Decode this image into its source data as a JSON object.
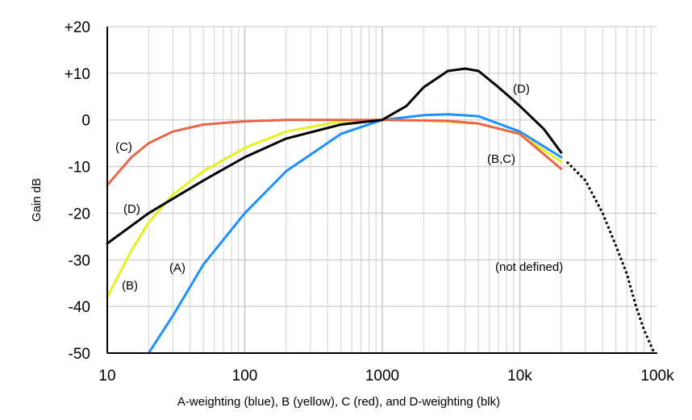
{
  "chart_data": {
    "type": "line",
    "caption": "A-weighting (blue), B (yellow), C (red), and D-weighting (blk)",
    "ylabel": "Gain dB",
    "xscale": "log",
    "xlim": [
      10,
      100000
    ],
    "ylim": [
      -50,
      20
    ],
    "grid": true,
    "x_tick_labels": [
      "10",
      "100",
      "1000",
      "10k",
      "100k"
    ],
    "y_ticks": [
      20,
      10,
      0,
      -10,
      -20,
      -30,
      -40,
      -50
    ],
    "y_tick_labels": [
      "+20",
      "+10",
      "0",
      "-10",
      "-20",
      "-30",
      "-40",
      "-50"
    ],
    "series": [
      {
        "color": "#1e90ff",
        "points": [
          [
            20,
            -50
          ],
          [
            30,
            -42
          ],
          [
            50,
            -31
          ],
          [
            100,
            -20
          ],
          [
            200,
            -11
          ],
          [
            500,
            -3
          ],
          [
            1000,
            0
          ],
          [
            2000,
            1
          ],
          [
            3000,
            1.2
          ],
          [
            5000,
            0.8
          ],
          [
            10000,
            -2.5
          ],
          [
            20000,
            -8
          ]
        ]
      },
      {
        "color": "#e8f020",
        "points": [
          [
            10,
            -38
          ],
          [
            15,
            -28
          ],
          [
            20,
            -22
          ],
          [
            30,
            -16
          ],
          [
            50,
            -11
          ],
          [
            100,
            -6
          ],
          [
            200,
            -2.5
          ],
          [
            500,
            -0.3
          ],
          [
            1000,
            0
          ],
          [
            2000,
            -0.1
          ],
          [
            5000,
            -0.8
          ],
          [
            10000,
            -3
          ],
          [
            20000,
            -9
          ]
        ]
      },
      {
        "color": "#e8654a",
        "points": [
          [
            10,
            -14
          ],
          [
            15,
            -8
          ],
          [
            20,
            -5
          ],
          [
            30,
            -2.5
          ],
          [
            50,
            -1
          ],
          [
            100,
            -0.3
          ],
          [
            200,
            0
          ],
          [
            1000,
            0
          ],
          [
            3000,
            -0.2
          ],
          [
            5000,
            -0.8
          ],
          [
            10000,
            -3
          ],
          [
            20000,
            -10.5
          ]
        ]
      },
      {
        "color": "#000000",
        "points": [
          [
            10,
            -26.5
          ],
          [
            20,
            -20
          ],
          [
            50,
            -13
          ],
          [
            100,
            -8
          ],
          [
            200,
            -4
          ],
          [
            500,
            -1
          ],
          [
            1000,
            0
          ],
          [
            1500,
            3
          ],
          [
            2000,
            7
          ],
          [
            3000,
            10.5
          ],
          [
            4000,
            11
          ],
          [
            5000,
            10.5
          ],
          [
            7000,
            7
          ],
          [
            10000,
            3
          ],
          [
            15000,
            -2
          ],
          [
            20000,
            -7
          ]
        ]
      },
      {
        "color": "#000000",
        "dashed": true,
        "points": [
          [
            22000,
            -9
          ],
          [
            30000,
            -13
          ],
          [
            40000,
            -20
          ],
          [
            50000,
            -27
          ],
          [
            60000,
            -33
          ],
          [
            70000,
            -40
          ],
          [
            80000,
            -45
          ],
          [
            95000,
            -50
          ]
        ]
      }
    ],
    "annotations": {
      "c_label": "(C)",
      "d_label": "(D)",
      "d_label_peak": "(D)",
      "bc_label": "(B,C)",
      "a_label": "(A)",
      "b_label": "(B)",
      "not_defined": "(not defined)"
    }
  }
}
